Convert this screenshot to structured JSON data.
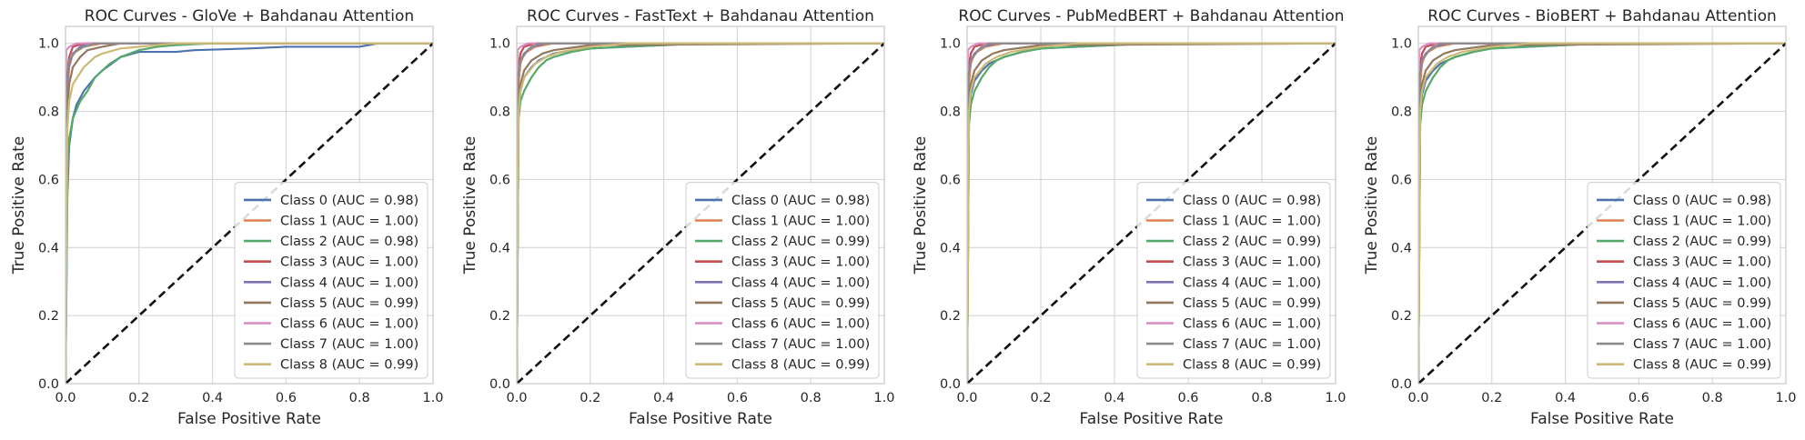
{
  "chart_data": [
    {
      "type": "line",
      "title": "ROC Curves - GloVe + Bahdanau Attention",
      "xlabel": "False Positive Rate",
      "ylabel": "True Positive Rate",
      "xlim": [
        0,
        1
      ],
      "ylim": [
        0,
        1.05
      ],
      "xticks": [
        "0.0",
        "0.2",
        "0.4",
        "0.6",
        "0.8",
        "1.0"
      ],
      "yticks": [
        "0.0",
        "0.2",
        "0.4",
        "0.6",
        "0.8",
        "1.0"
      ],
      "grid": true,
      "legend_position": "lower-right",
      "series": [
        {
          "name": "Class 0 (AUC = 0.98)",
          "color": "#4c72b0",
          "x": [
            0,
            0.005,
            0.01,
            0.02,
            0.03,
            0.05,
            0.08,
            0.1,
            0.15,
            0.2,
            0.3,
            0.35,
            0.5,
            0.6,
            0.8,
            0.85,
            1
          ],
          "y": [
            0,
            0.55,
            0.7,
            0.78,
            0.82,
            0.86,
            0.9,
            0.92,
            0.96,
            0.975,
            0.975,
            0.98,
            0.985,
            0.99,
            0.99,
            1.0,
            1.0
          ]
        },
        {
          "name": "Class 1 (AUC = 1.00)",
          "color": "#dd8452",
          "x": [
            0,
            0.005,
            0.01,
            0.02,
            0.05,
            0.1,
            0.2,
            1
          ],
          "y": [
            0,
            0.85,
            0.93,
            0.97,
            0.99,
            1.0,
            1.0,
            1.0
          ]
        },
        {
          "name": "Class 2 (AUC = 0.98)",
          "color": "#55a868",
          "x": [
            0,
            0.005,
            0.01,
            0.02,
            0.04,
            0.06,
            0.08,
            0.1,
            0.12,
            0.15,
            0.2,
            0.25,
            0.3,
            0.4,
            1
          ],
          "y": [
            0,
            0.6,
            0.72,
            0.78,
            0.83,
            0.86,
            0.9,
            0.92,
            0.94,
            0.96,
            0.98,
            0.99,
            0.995,
            1.0,
            1.0
          ]
        },
        {
          "name": "Class 3 (AUC = 1.00)",
          "color": "#c44e52",
          "x": [
            0,
            0.003,
            0.01,
            0.02,
            0.05,
            1
          ],
          "y": [
            0,
            0.9,
            0.96,
            0.99,
            1.0,
            1.0
          ]
        },
        {
          "name": "Class 4 (AUC = 1.00)",
          "color": "#8172b3",
          "x": [
            0,
            0.003,
            0.01,
            0.02,
            0.04,
            0.06,
            0.1,
            1
          ],
          "y": [
            0,
            0.88,
            0.94,
            0.97,
            0.99,
            1.0,
            1.0,
            1.0
          ]
        },
        {
          "name": "Class 5 (AUC = 0.99)",
          "color": "#937860",
          "x": [
            0,
            0.005,
            0.01,
            0.02,
            0.04,
            0.06,
            0.1,
            0.15,
            0.2,
            1
          ],
          "y": [
            0,
            0.8,
            0.88,
            0.93,
            0.96,
            0.98,
            0.99,
            1.0,
            1.0,
            1.0
          ]
        },
        {
          "name": "Class 6 (AUC = 1.00)",
          "color": "#da8bc3",
          "x": [
            0,
            0.002,
            0.01,
            0.03,
            1
          ],
          "y": [
            0,
            0.98,
            0.99,
            1.0,
            1.0
          ]
        },
        {
          "name": "Class 7 (AUC = 1.00)",
          "color": "#8c8c8c",
          "x": [
            0,
            0.003,
            0.01,
            0.03,
            0.05,
            0.08,
            1
          ],
          "y": [
            0,
            0.9,
            0.95,
            0.98,
            0.99,
            1.0,
            1.0
          ]
        },
        {
          "name": "Class 8 (AUC = 0.99)",
          "color": "#ccb974",
          "x": [
            0,
            0.005,
            0.01,
            0.02,
            0.05,
            0.08,
            0.1,
            0.15,
            0.2,
            0.3,
            1
          ],
          "y": [
            0,
            0.75,
            0.83,
            0.88,
            0.93,
            0.96,
            0.97,
            0.985,
            0.99,
            1.0,
            1.0
          ]
        }
      ]
    },
    {
      "type": "line",
      "title": "ROC Curves - FastText + Bahdanau Attention",
      "xlabel": "False Positive Rate",
      "ylabel": "True Positive Rate",
      "xlim": [
        0,
        1
      ],
      "ylim": [
        0,
        1.05
      ],
      "xticks": [
        "0.0",
        "0.2",
        "0.4",
        "0.6",
        "0.8",
        "1.0"
      ],
      "yticks": [
        "0.0",
        "0.2",
        "0.4",
        "0.6",
        "0.8",
        "1.0"
      ],
      "grid": true,
      "legend_position": "lower-right",
      "series": [
        {
          "name": "Class 0 (AUC = 0.98)",
          "color": "#4c72b0",
          "x": [
            0,
            0.005,
            0.01,
            0.02,
            0.04,
            0.06,
            0.1,
            0.15,
            0.2,
            0.3,
            0.4,
            0.5,
            1
          ],
          "y": [
            0,
            0.8,
            0.86,
            0.9,
            0.93,
            0.95,
            0.97,
            0.98,
            0.985,
            0.99,
            0.995,
            1.0,
            1.0
          ]
        },
        {
          "name": "Class 1 (AUC = 1.00)",
          "color": "#dd8452",
          "x": [
            0,
            0.005,
            0.01,
            0.02,
            0.05,
            0.1,
            1
          ],
          "y": [
            0,
            0.88,
            0.94,
            0.97,
            0.99,
            1.0,
            1.0
          ]
        },
        {
          "name": "Class 2 (AUC = 0.99)",
          "color": "#55a868",
          "x": [
            0,
            0.005,
            0.01,
            0.02,
            0.04,
            0.06,
            0.08,
            0.1,
            0.15,
            0.2,
            0.3,
            0.5,
            1
          ],
          "y": [
            0,
            0.78,
            0.83,
            0.86,
            0.9,
            0.93,
            0.95,
            0.96,
            0.975,
            0.985,
            0.99,
            1.0,
            1.0
          ]
        },
        {
          "name": "Class 3 (AUC = 1.00)",
          "color": "#c44e52",
          "x": [
            0,
            0.003,
            0.01,
            0.02,
            0.05,
            1
          ],
          "y": [
            0,
            0.92,
            0.97,
            0.99,
            1.0,
            1.0
          ]
        },
        {
          "name": "Class 4 (AUC = 1.00)",
          "color": "#8172b3",
          "x": [
            0,
            0.003,
            0.01,
            0.02,
            0.04,
            0.08,
            1
          ],
          "y": [
            0,
            0.9,
            0.95,
            0.97,
            0.99,
            1.0,
            1.0
          ]
        },
        {
          "name": "Class 5 (AUC = 0.99)",
          "color": "#937860",
          "x": [
            0,
            0.005,
            0.01,
            0.02,
            0.04,
            0.07,
            0.1,
            0.2,
            1
          ],
          "y": [
            0,
            0.82,
            0.88,
            0.92,
            0.95,
            0.97,
            0.98,
            0.995,
            1.0
          ]
        },
        {
          "name": "Class 6 (AUC = 1.00)",
          "color": "#da8bc3",
          "x": [
            0,
            0.002,
            0.01,
            0.03,
            1
          ],
          "y": [
            0,
            0.98,
            0.99,
            1.0,
            1.0
          ]
        },
        {
          "name": "Class 7 (AUC = 1.00)",
          "color": "#8c8c8c",
          "x": [
            0,
            0.003,
            0.01,
            0.03,
            0.06,
            1
          ],
          "y": [
            0,
            0.9,
            0.95,
            0.98,
            1.0,
            1.0
          ]
        },
        {
          "name": "Class 8 (AUC = 0.99)",
          "color": "#ccb974",
          "x": [
            0,
            0.005,
            0.01,
            0.02,
            0.05,
            0.08,
            0.12,
            0.2,
            0.3,
            1
          ],
          "y": [
            0,
            0.8,
            0.86,
            0.9,
            0.94,
            0.96,
            0.975,
            0.99,
            1.0,
            1.0
          ]
        }
      ]
    },
    {
      "type": "line",
      "title": "ROC Curves - PubMedBERT + Bahdanau Attention",
      "xlabel": "False Positive Rate",
      "ylabel": "True Positive Rate",
      "xlim": [
        0,
        1
      ],
      "ylim": [
        0,
        1.05
      ],
      "xticks": [
        "0.0",
        "0.2",
        "0.4",
        "0.6",
        "0.8",
        "1.0"
      ],
      "yticks": [
        "0.0",
        "0.2",
        "0.4",
        "0.6",
        "0.8",
        "1.0"
      ],
      "grid": true,
      "legend_position": "lower-right",
      "series": [
        {
          "name": "Class 0 (AUC = 0.98)",
          "color": "#4c72b0",
          "x": [
            0,
            0.005,
            0.01,
            0.02,
            0.04,
            0.06,
            0.1,
            0.15,
            0.2,
            0.3,
            0.4,
            0.5,
            1
          ],
          "y": [
            0,
            0.78,
            0.85,
            0.89,
            0.92,
            0.94,
            0.96,
            0.975,
            0.985,
            0.99,
            0.995,
            1.0,
            1.0
          ]
        },
        {
          "name": "Class 1 (AUC = 1.00)",
          "color": "#dd8452",
          "x": [
            0,
            0.005,
            0.01,
            0.02,
            0.05,
            0.1,
            1
          ],
          "y": [
            0,
            0.88,
            0.94,
            0.97,
            0.99,
            1.0,
            1.0
          ]
        },
        {
          "name": "Class 2 (AUC = 0.99)",
          "color": "#55a868",
          "x": [
            0,
            0.005,
            0.01,
            0.02,
            0.04,
            0.06,
            0.08,
            0.1,
            0.15,
            0.2,
            0.3,
            0.5,
            1
          ],
          "y": [
            0,
            0.76,
            0.82,
            0.86,
            0.9,
            0.93,
            0.95,
            0.96,
            0.975,
            0.985,
            0.99,
            1.0,
            1.0
          ]
        },
        {
          "name": "Class 3 (AUC = 1.00)",
          "color": "#c44e52",
          "x": [
            0,
            0.003,
            0.01,
            0.02,
            0.05,
            1
          ],
          "y": [
            0,
            0.92,
            0.97,
            0.99,
            1.0,
            1.0
          ]
        },
        {
          "name": "Class 4 (AUC = 1.00)",
          "color": "#8172b3",
          "x": [
            0,
            0.003,
            0.01,
            0.02,
            0.04,
            0.08,
            1
          ],
          "y": [
            0,
            0.9,
            0.95,
            0.97,
            0.99,
            1.0,
            1.0
          ]
        },
        {
          "name": "Class 5 (AUC = 0.99)",
          "color": "#937860",
          "x": [
            0,
            0.005,
            0.01,
            0.02,
            0.04,
            0.07,
            0.1,
            0.2,
            1
          ],
          "y": [
            0,
            0.82,
            0.88,
            0.92,
            0.95,
            0.97,
            0.98,
            0.995,
            1.0
          ]
        },
        {
          "name": "Class 6 (AUC = 1.00)",
          "color": "#da8bc3",
          "x": [
            0,
            0.002,
            0.01,
            0.03,
            1
          ],
          "y": [
            0,
            0.98,
            0.99,
            1.0,
            1.0
          ]
        },
        {
          "name": "Class 7 (AUC = 1.00)",
          "color": "#8c8c8c",
          "x": [
            0,
            0.003,
            0.01,
            0.03,
            0.06,
            1
          ],
          "y": [
            0,
            0.9,
            0.95,
            0.98,
            1.0,
            1.0
          ]
        },
        {
          "name": "Class 8 (AUC = 0.99)",
          "color": "#ccb974",
          "x": [
            0,
            0.005,
            0.01,
            0.02,
            0.05,
            0.08,
            0.12,
            0.2,
            0.3,
            1
          ],
          "y": [
            0,
            0.8,
            0.86,
            0.9,
            0.94,
            0.96,
            0.975,
            0.99,
            1.0,
            1.0
          ]
        }
      ]
    },
    {
      "type": "line",
      "title": "ROC Curves - BioBERT + Bahdanau Attention",
      "xlabel": "False Positive Rate",
      "ylabel": "True Positive Rate",
      "xlim": [
        0,
        1
      ],
      "ylim": [
        0,
        1.05
      ],
      "xticks": [
        "0.0",
        "0.2",
        "0.4",
        "0.6",
        "0.8",
        "1.0"
      ],
      "yticks": [
        "0.0",
        "0.2",
        "0.4",
        "0.6",
        "0.8",
        "1.0"
      ],
      "grid": true,
      "legend_position": "lower-right",
      "series": [
        {
          "name": "Class 0 (AUC = 0.98)",
          "color": "#4c72b0",
          "x": [
            0,
            0.005,
            0.01,
            0.02,
            0.04,
            0.06,
            0.1,
            0.15,
            0.2,
            0.3,
            0.4,
            0.5,
            1
          ],
          "y": [
            0,
            0.78,
            0.85,
            0.89,
            0.92,
            0.94,
            0.96,
            0.975,
            0.985,
            0.99,
            0.995,
            1.0,
            1.0
          ]
        },
        {
          "name": "Class 1 (AUC = 1.00)",
          "color": "#dd8452",
          "x": [
            0,
            0.005,
            0.01,
            0.02,
            0.05,
            0.1,
            1
          ],
          "y": [
            0,
            0.88,
            0.94,
            0.97,
            0.99,
            1.0,
            1.0
          ]
        },
        {
          "name": "Class 2 (AUC = 0.99)",
          "color": "#55a868",
          "x": [
            0,
            0.005,
            0.01,
            0.02,
            0.04,
            0.06,
            0.08,
            0.1,
            0.15,
            0.2,
            0.3,
            0.5,
            1
          ],
          "y": [
            0,
            0.76,
            0.82,
            0.86,
            0.9,
            0.93,
            0.95,
            0.96,
            0.975,
            0.985,
            0.99,
            1.0,
            1.0
          ]
        },
        {
          "name": "Class 3 (AUC = 1.00)",
          "color": "#c44e52",
          "x": [
            0,
            0.003,
            0.01,
            0.02,
            0.05,
            1
          ],
          "y": [
            0,
            0.92,
            0.97,
            0.99,
            1.0,
            1.0
          ]
        },
        {
          "name": "Class 4 (AUC = 1.00)",
          "color": "#8172b3",
          "x": [
            0,
            0.003,
            0.01,
            0.02,
            0.04,
            0.08,
            1
          ],
          "y": [
            0,
            0.9,
            0.95,
            0.97,
            0.99,
            1.0,
            1.0
          ]
        },
        {
          "name": "Class 5 (AUC = 0.99)",
          "color": "#937860",
          "x": [
            0,
            0.005,
            0.01,
            0.02,
            0.04,
            0.07,
            0.1,
            0.2,
            1
          ],
          "y": [
            0,
            0.82,
            0.88,
            0.92,
            0.95,
            0.97,
            0.98,
            0.995,
            1.0
          ]
        },
        {
          "name": "Class 6 (AUC = 1.00)",
          "color": "#da8bc3",
          "x": [
            0,
            0.002,
            0.01,
            0.03,
            1
          ],
          "y": [
            0,
            0.98,
            0.99,
            1.0,
            1.0
          ]
        },
        {
          "name": "Class 7 (AUC = 1.00)",
          "color": "#8c8c8c",
          "x": [
            0,
            0.003,
            0.01,
            0.03,
            0.06,
            1
          ],
          "y": [
            0,
            0.9,
            0.95,
            0.98,
            1.0,
            1.0
          ]
        },
        {
          "name": "Class 8 (AUC = 0.99)",
          "color": "#ccb974",
          "x": [
            0,
            0.005,
            0.01,
            0.02,
            0.05,
            0.08,
            0.12,
            0.2,
            0.3,
            1
          ],
          "y": [
            0,
            0.8,
            0.86,
            0.9,
            0.94,
            0.96,
            0.975,
            0.99,
            1.0,
            1.0
          ]
        }
      ]
    }
  ]
}
